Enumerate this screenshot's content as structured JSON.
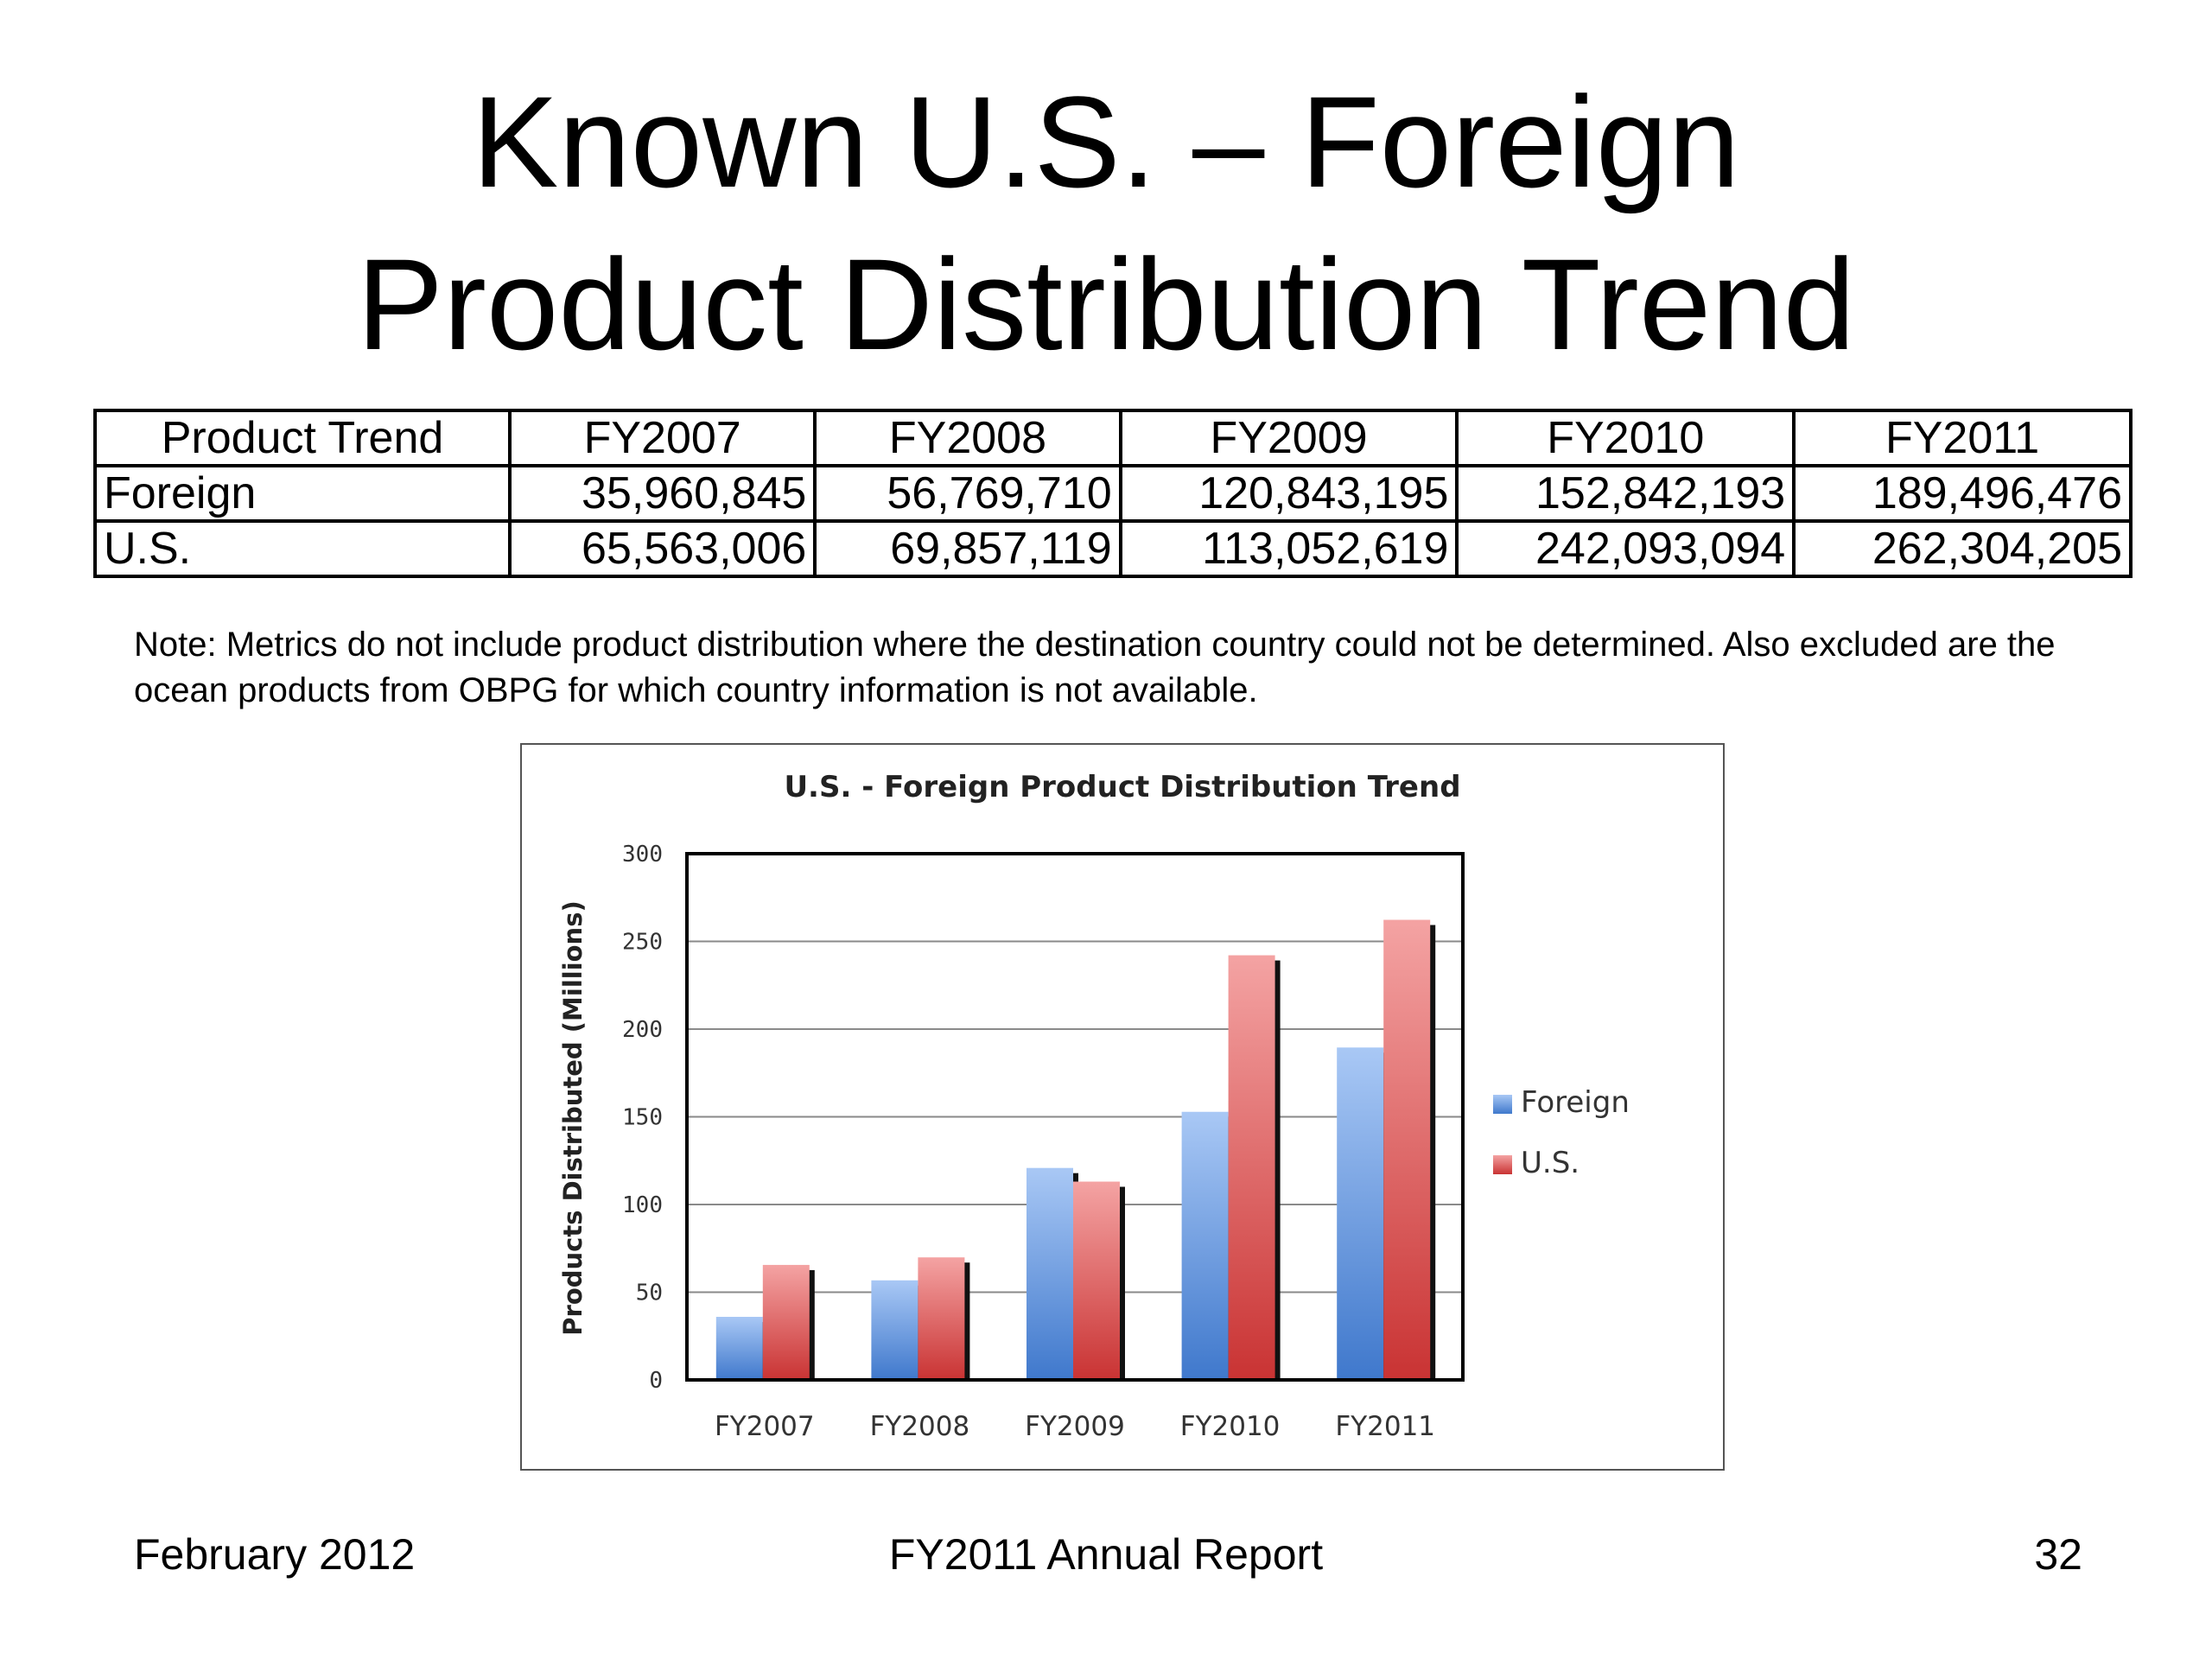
{
  "slide": {
    "title_line1": "Known U.S. – Foreign",
    "title_line2": "Product Distribution Trend",
    "note": "Note: Metrics do not include product  distribution where the destination country could not be determined.  Also excluded are the ocean products from OBPG for which country information is not available.",
    "footer_left": "February 2012",
    "footer_center": "FY2011 Annual Report",
    "footer_right": "32"
  },
  "table": {
    "headers": [
      "Product Trend",
      "FY2007",
      "FY2008",
      "FY2009",
      "FY2010",
      "FY2011"
    ],
    "rows": [
      [
        "Foreign",
        "35,960,845",
        "56,769,710",
        "120,843,195",
        "152,842,193",
        "189,496,476"
      ],
      [
        "U.S.",
        "65,563,006",
        "69,857,119",
        "113,052,619",
        "242,093,094",
        "262,304,205"
      ]
    ]
  },
  "chart_data": {
    "type": "bar",
    "title": "U.S. - Foreign Product Distribution Trend",
    "xlabel": "",
    "ylabel": "Products Distributed (Millions)",
    "categories": [
      "FY2007",
      "FY2008",
      "FY2009",
      "FY2010",
      "FY2011"
    ],
    "series": [
      {
        "name": "Foreign",
        "values": [
          35.96,
          56.77,
          120.84,
          152.84,
          189.5
        ],
        "color": "#5b8fd6"
      },
      {
        "name": "U.S.",
        "values": [
          65.56,
          69.86,
          113.05,
          242.09,
          262.3
        ],
        "color": "#d94a4a"
      }
    ],
    "ylim": [
      0,
      300
    ],
    "yticks": [
      0,
      50,
      100,
      150,
      200,
      250,
      300
    ],
    "grid": true,
    "legend": "right"
  }
}
